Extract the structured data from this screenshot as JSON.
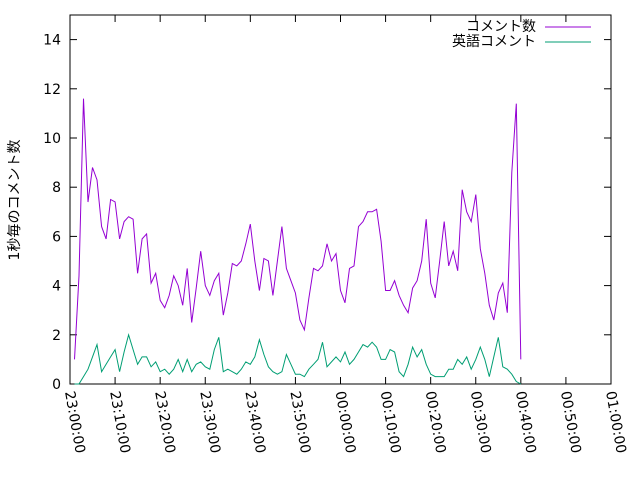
{
  "chart_data": {
    "type": "line",
    "title": "",
    "ylabel": "1秒毎のコメント数",
    "xlabel": "",
    "ylim": [
      0,
      15
    ],
    "xlim_minutes": [
      0,
      120
    ],
    "yticks": [
      0,
      2,
      4,
      6,
      8,
      10,
      12,
      14
    ],
    "xtick_labels": [
      "23:00:00",
      "23:10:00",
      "23:20:00",
      "23:30:00",
      "23:40:00",
      "23:50:00",
      "00:00:00",
      "00:10:00",
      "00:20:00",
      "00:30:00",
      "00:40:00",
      "00:50:00",
      "01:00:00"
    ],
    "legend_position": "top-right",
    "grid": false,
    "x_step_minutes": 1,
    "series": [
      {
        "name": "コメント数",
        "color": "#9400d3",
        "values": [
          1.0,
          4.4,
          11.6,
          7.4,
          8.8,
          8.3,
          6.4,
          5.9,
          7.5,
          7.4,
          5.9,
          6.6,
          6.8,
          6.7,
          4.5,
          5.9,
          6.1,
          4.1,
          4.5,
          3.4,
          3.1,
          3.6,
          4.4,
          4.0,
          3.2,
          4.7,
          2.5,
          3.9,
          5.4,
          4.0,
          3.6,
          4.2,
          4.5,
          2.8,
          3.7,
          4.9,
          4.8,
          5.0,
          5.7,
          6.5,
          5.0,
          3.8,
          5.1,
          5.0,
          3.6,
          5.0,
          6.4,
          4.7,
          4.2,
          3.7,
          2.6,
          2.2,
          3.5,
          4.7,
          4.6,
          4.8,
          5.7,
          5.0,
          5.3,
          3.8,
          3.3,
          4.7,
          4.8,
          6.4,
          6.6,
          7.0,
          7.0,
          7.1,
          5.8,
          3.8,
          3.8,
          4.2,
          3.6,
          3.2,
          2.9,
          3.9,
          4.2,
          5.0,
          6.7,
          4.1,
          3.5,
          5.0,
          6.6,
          4.8,
          5.4,
          4.6,
          7.9,
          7.0,
          6.6,
          7.7,
          5.5,
          4.5,
          3.2,
          2.6,
          3.7,
          4.1,
          2.9,
          8.6,
          11.4,
          1.0
        ]
      },
      {
        "name": "英語コメント",
        "color": "#009e73",
        "values": [
          0.0,
          0.0,
          0.3,
          0.6,
          1.1,
          1.6,
          0.5,
          0.8,
          1.1,
          1.4,
          0.5,
          1.3,
          2.0,
          1.4,
          0.8,
          1.1,
          1.1,
          0.7,
          0.9,
          0.5,
          0.6,
          0.4,
          0.6,
          1.0,
          0.5,
          1.0,
          0.5,
          0.8,
          0.9,
          0.7,
          0.6,
          1.4,
          1.9,
          0.5,
          0.6,
          0.5,
          0.4,
          0.6,
          0.9,
          0.8,
          1.1,
          1.8,
          1.2,
          0.7,
          0.5,
          0.4,
          0.5,
          1.2,
          0.8,
          0.4,
          0.4,
          0.3,
          0.6,
          0.8,
          1.0,
          1.7,
          0.7,
          0.9,
          1.1,
          0.9,
          1.3,
          0.8,
          1.0,
          1.3,
          1.6,
          1.5,
          1.7,
          1.5,
          1.0,
          1.0,
          1.4,
          1.3,
          0.5,
          0.3,
          0.8,
          1.5,
          1.1,
          1.4,
          0.8,
          0.4,
          0.3,
          0.3,
          0.3,
          0.6,
          0.6,
          1.0,
          0.8,
          1.1,
          0.6,
          1.0,
          1.5,
          1.0,
          0.3,
          1.1,
          1.9,
          0.7,
          0.6,
          0.4,
          0.1,
          0.0
        ]
      }
    ]
  }
}
